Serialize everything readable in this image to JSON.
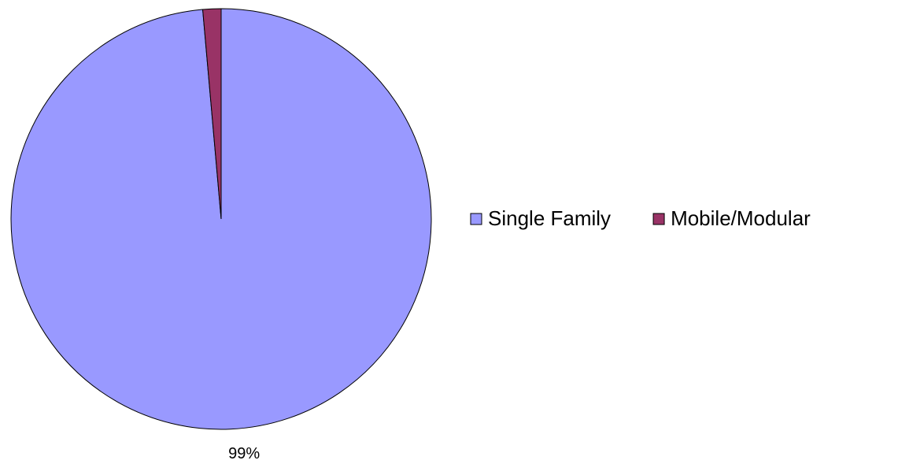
{
  "chart_data": {
    "type": "pie",
    "categories": [
      "Single Family",
      "Mobile/Modular"
    ],
    "values": [
      98.6,
      1.4
    ],
    "value_labels": [
      "99%",
      null
    ],
    "colors": [
      "#9999ff",
      "#993366"
    ],
    "legend": "right"
  }
}
